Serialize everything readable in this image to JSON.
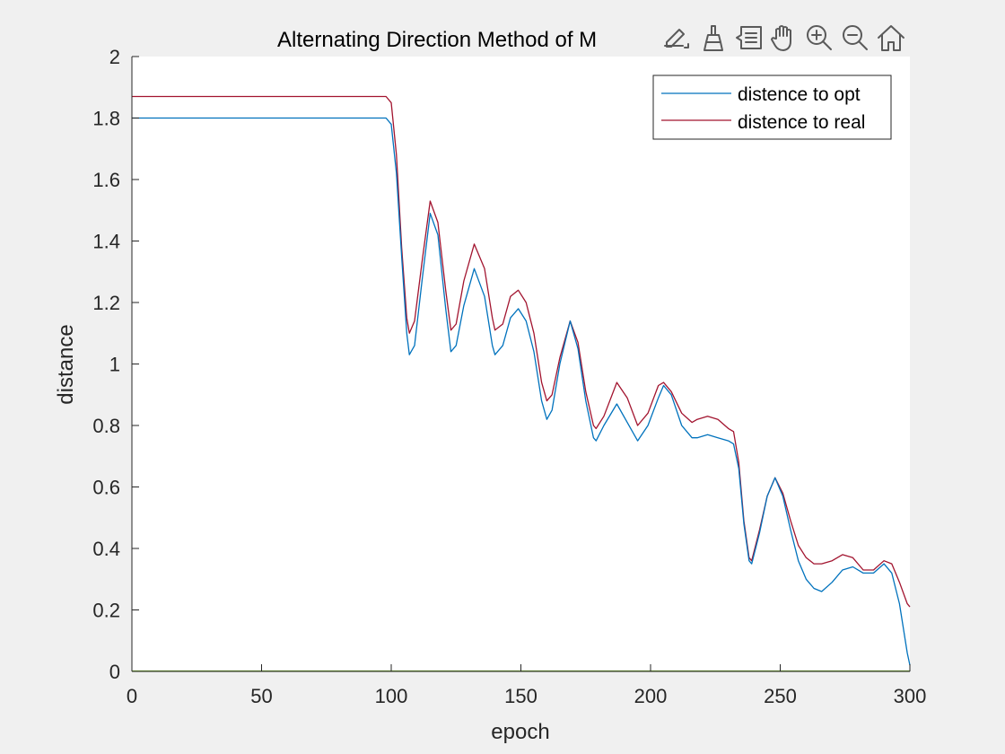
{
  "colors": {
    "background": "#f0f0f0",
    "axes_background": "#ffffff",
    "axis": "#262626",
    "series_opt": "#0072bd",
    "series_real": "#a2142f",
    "baseline": "#77ac30",
    "toolbar_icon": "#5a5a5a"
  },
  "toolbar": {
    "icons": [
      "edit-data-icon",
      "brush-icon",
      "data-tips-icon",
      "pan-hand-icon",
      "zoom-in-icon",
      "zoom-out-icon",
      "home-restore-view-icon"
    ]
  },
  "chart_data": {
    "type": "line",
    "title": "Alternating Direction Method of M",
    "xlabel": "epoch",
    "ylabel": "distance",
    "xlim": [
      0,
      300
    ],
    "ylim": [
      0,
      2
    ],
    "xticks": [
      0,
      50,
      100,
      150,
      200,
      250,
      300
    ],
    "yticks": [
      0,
      0.2,
      0.4,
      0.6,
      0.8,
      1,
      1.2,
      1.4,
      1.6,
      1.8,
      2
    ],
    "xtick_labels": [
      "0",
      "50",
      "100",
      "150",
      "200",
      "250",
      "300"
    ],
    "ytick_labels": [
      "0",
      "0.2",
      "0.4",
      "0.6",
      "0.8",
      "1",
      "1.2",
      "1.4",
      "1.6",
      "1.8",
      "2"
    ],
    "grid": false,
    "legend_position": "top-right",
    "series": [
      {
        "name": "distence to opt",
        "color": "#0072bd",
        "x": [
          0,
          98,
          100,
          102,
          104,
          106,
          107,
          109,
          112,
          115,
          118,
          121,
          123,
          125,
          128,
          132,
          136,
          139,
          140,
          143,
          146,
          149,
          152,
          155,
          158,
          160,
          162,
          165,
          169,
          172,
          175,
          178,
          179,
          182,
          187,
          191,
          195,
          199,
          203,
          205,
          208,
          212,
          216,
          218,
          222,
          226,
          230,
          232,
          234,
          236,
          238,
          239,
          242,
          245,
          248,
          251,
          254,
          257,
          260,
          263,
          266,
          270,
          274,
          278,
          282,
          286,
          290,
          293,
          296,
          299,
          300
        ],
        "y": [
          1.8,
          1.8,
          1.78,
          1.62,
          1.35,
          1.1,
          1.03,
          1.06,
          1.28,
          1.49,
          1.42,
          1.18,
          1.04,
          1.06,
          1.19,
          1.31,
          1.22,
          1.06,
          1.03,
          1.06,
          1.15,
          1.18,
          1.14,
          1.04,
          0.88,
          0.82,
          0.85,
          1.0,
          1.14,
          1.05,
          0.88,
          0.76,
          0.75,
          0.8,
          0.87,
          0.81,
          0.75,
          0.8,
          0.89,
          0.93,
          0.9,
          0.8,
          0.76,
          0.76,
          0.77,
          0.76,
          0.75,
          0.74,
          0.66,
          0.48,
          0.36,
          0.35,
          0.45,
          0.57,
          0.63,
          0.57,
          0.46,
          0.36,
          0.3,
          0.27,
          0.26,
          0.29,
          0.33,
          0.34,
          0.32,
          0.32,
          0.35,
          0.32,
          0.22,
          0.06,
          0.02
        ]
      },
      {
        "name": "distence to real",
        "color": "#a2142f",
        "x": [
          0,
          98,
          100,
          102,
          104,
          106,
          107,
          109,
          112,
          115,
          118,
          121,
          123,
          125,
          128,
          132,
          136,
          139,
          140,
          143,
          146,
          149,
          152,
          155,
          158,
          160,
          162,
          165,
          169,
          172,
          175,
          178,
          179,
          182,
          187,
          191,
          195,
          199,
          203,
          205,
          208,
          212,
          216,
          218,
          222,
          226,
          230,
          232,
          234,
          236,
          238,
          239,
          242,
          245,
          248,
          251,
          254,
          257,
          260,
          263,
          266,
          270,
          274,
          278,
          282,
          286,
          290,
          293,
          296,
          299,
          300
        ],
        "y": [
          1.87,
          1.87,
          1.85,
          1.68,
          1.38,
          1.15,
          1.1,
          1.14,
          1.34,
          1.53,
          1.46,
          1.24,
          1.11,
          1.13,
          1.27,
          1.39,
          1.31,
          1.15,
          1.11,
          1.13,
          1.22,
          1.24,
          1.2,
          1.1,
          0.94,
          0.88,
          0.9,
          1.02,
          1.14,
          1.07,
          0.91,
          0.8,
          0.79,
          0.83,
          0.94,
          0.89,
          0.8,
          0.84,
          0.93,
          0.94,
          0.91,
          0.84,
          0.81,
          0.82,
          0.83,
          0.82,
          0.79,
          0.78,
          0.68,
          0.49,
          0.37,
          0.36,
          0.46,
          0.57,
          0.63,
          0.58,
          0.49,
          0.41,
          0.37,
          0.35,
          0.35,
          0.36,
          0.38,
          0.37,
          0.33,
          0.33,
          0.36,
          0.35,
          0.29,
          0.22,
          0.21
        ]
      }
    ]
  }
}
